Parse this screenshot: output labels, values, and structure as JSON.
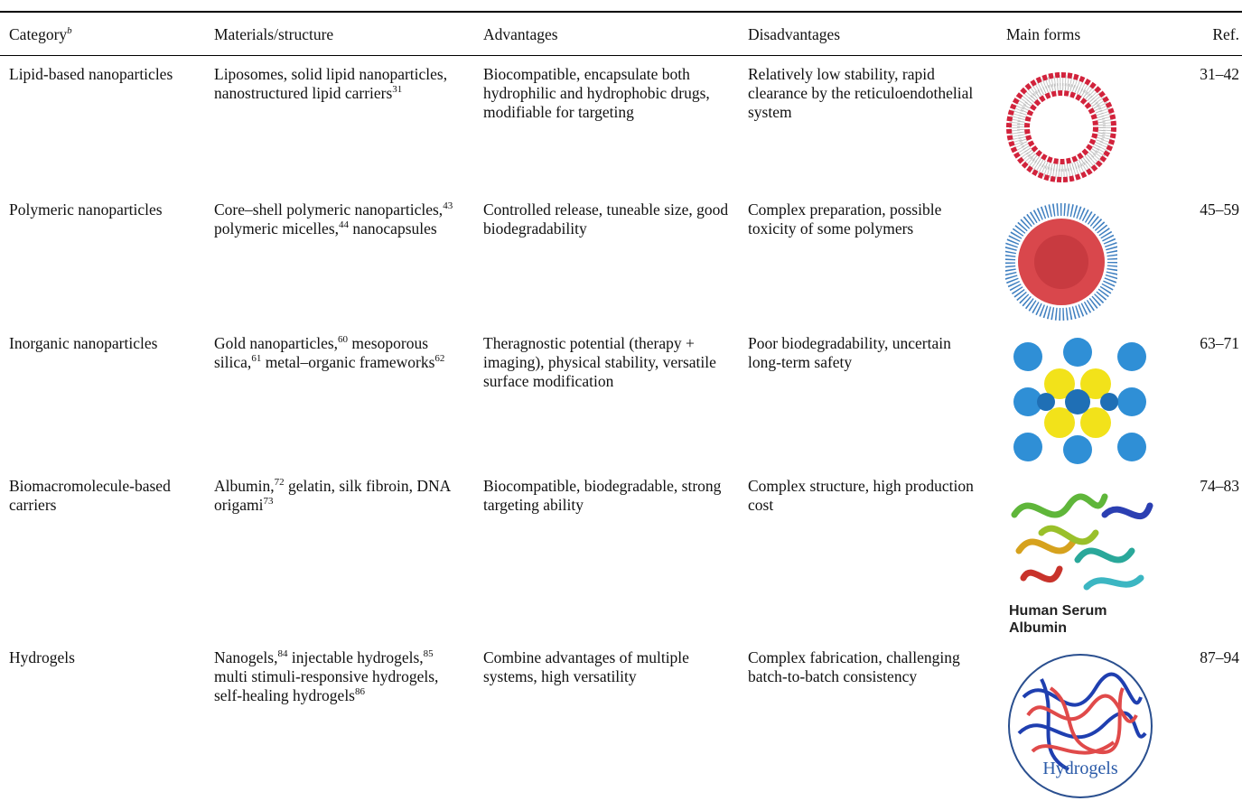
{
  "table": {
    "headers": [
      [
        {
          "text": "Category"
        },
        {
          "sup": "b"
        }
      ],
      "Materials/structure",
      "Advantages",
      "Disadvantages",
      "Main forms",
      "Ref."
    ],
    "rows": [
      {
        "category": "Lipid-based nanoparticles",
        "materials": [
          {
            "text": "Liposomes, solid lipid nanoparticles, nanostructured lipid carriers"
          },
          {
            "sup": "31"
          }
        ],
        "advantages": "Biocompatible, encapsulate both hydrophilic and hydrophobic drugs, modifiable for targeting",
        "disadvantages": "Relatively low stability, rapid clearance by the reticuloendothelial system",
        "ref": "31–42"
      },
      {
        "category": "Polymeric nanoparticles",
        "materials": [
          {
            "text": "Core–shell polymeric nanoparticles,"
          },
          {
            "sup": "43"
          },
          {
            "text": " polymeric micelles,"
          },
          {
            "sup": "44"
          },
          {
            "text": " nanocapsules"
          }
        ],
        "advantages": "Controlled release, tuneable size, good biodegradability",
        "disadvantages": "Complex preparation, possible toxicity of some polymers",
        "ref": "45–59"
      },
      {
        "category": "Inorganic nanoparticles",
        "materials": [
          {
            "text": "Gold nanoparticles,"
          },
          {
            "sup": "60"
          },
          {
            "text": " meso­porous silica,"
          },
          {
            "sup": "61"
          },
          {
            "text": " metal–organic frameworks"
          },
          {
            "sup": "62"
          }
        ],
        "advantages": "Theragnostic potential (therapy + imaging), physical stability, versatile surface modification",
        "disadvantages": "Poor biodegradability, uncertain long-term safety",
        "ref": "63–71"
      },
      {
        "category": "Biomacromolecule-based carriers",
        "materials": [
          {
            "text": "Albumin,"
          },
          {
            "sup": "72"
          },
          {
            "text": " gelatin, silk fibroin, DNA origami"
          },
          {
            "sup": "73"
          }
        ],
        "advantages": "Biocompatible, biodegradable, strong targeting ability",
        "disadvantages": "Complex structure, high production cost",
        "main_form_label": "Human Serum Albumin",
        "ref": "74–83"
      },
      {
        "category": "Hydrogels",
        "materials": [
          {
            "text": "Nanogels,"
          },
          {
            "sup": "84"
          },
          {
            "text": " injectable hydro­gels,"
          },
          {
            "sup": "85"
          },
          {
            "text": " multi stimuli-respon­sive hydrogels, self-healing hydrogels"
          },
          {
            "sup": "86"
          }
        ],
        "advantages": "Combine advantages of multiple systems, high versatility",
        "disadvantages": "Complex fabrication, challenging batch-to-batch consistency",
        "main_form_label": "Hydrogels",
        "ref": "87–94"
      }
    ]
  }
}
